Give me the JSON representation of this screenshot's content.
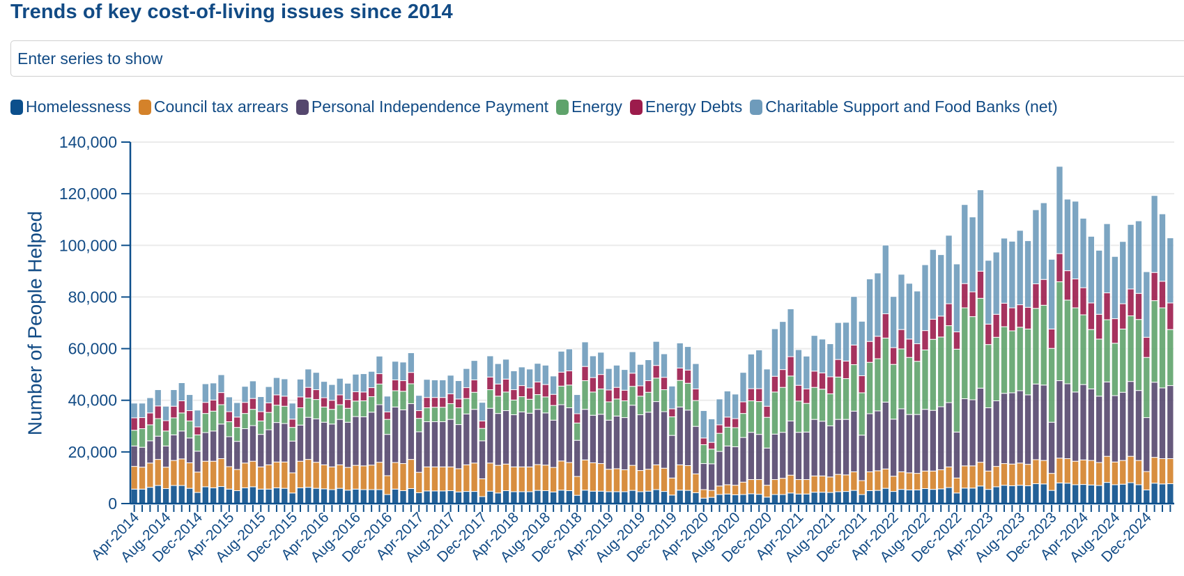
{
  "header": {
    "title": "Trends of key cost-of-living issues since 2014"
  },
  "search": {
    "placeholder": "Enter series to show",
    "value": ""
  },
  "legend": {
    "items": [
      {
        "label": "Homelessness",
        "color": "#0b4f8c",
        "icon": "legend-swatch"
      },
      {
        "label": "Council tax arrears",
        "color": "#d4822a",
        "icon": "legend-swatch"
      },
      {
        "label": "Personal Independence Payment",
        "color": "#55476e",
        "icon": "legend-swatch"
      },
      {
        "label": "Energy",
        "color": "#5fa36b",
        "icon": "legend-swatch"
      },
      {
        "label": "Energy Debts",
        "color": "#9c1c4c",
        "icon": "legend-swatch"
      },
      {
        "label": "Charitable Support and Food Banks (net)",
        "color": "#6e9bbb",
        "icon": "legend-swatch"
      }
    ]
  },
  "chart_data": {
    "type": "bar",
    "stacked": true,
    "title": "Trends of key cost-of-living issues since 2014",
    "xlabel": "",
    "ylabel": "Number of People Helped",
    "ylim": [
      0,
      140000
    ],
    "grid": true,
    "legend_position": "top-left",
    "y_ticks": [
      0,
      20000,
      40000,
      60000,
      80000,
      100000,
      120000,
      140000
    ],
    "y_tick_labels": [
      "0",
      "20,000",
      "40,000",
      "60,000",
      "80,000",
      "100,000",
      "120,000",
      "140,000"
    ],
    "x_tick_labels": [
      "Apr-2014",
      "Aug-2014",
      "Dec-2014",
      "Apr-2015",
      "Aug-2015",
      "Dec-2015",
      "Apr-2016",
      "Aug-2016",
      "Dec-2016",
      "Apr-2017",
      "Aug-2017",
      "Dec-2017",
      "Apr-2018",
      "Aug-2018",
      "Dec-2018",
      "Apr-2019",
      "Aug-2019",
      "Dec-2019",
      "Apr-2020",
      "Aug-2020",
      "Dec-2020",
      "Apr-2021",
      "Aug-2021",
      "Dec-2021",
      "Apr-2022",
      "Aug-2022",
      "Dec-2022",
      "Apr-2023",
      "Aug-2023",
      "Dec-2023",
      "Apr-2024",
      "Aug-2024",
      "Dec-2024"
    ],
    "categories": [
      "Apr-2014",
      "May-2014",
      "Jun-2014",
      "Jul-2014",
      "Aug-2014",
      "Sep-2014",
      "Oct-2014",
      "Nov-2014",
      "Dec-2014",
      "Jan-2015",
      "Feb-2015",
      "Mar-2015",
      "Apr-2015",
      "May-2015",
      "Jun-2015",
      "Jul-2015",
      "Aug-2015",
      "Sep-2015",
      "Oct-2015",
      "Nov-2015",
      "Dec-2015",
      "Jan-2016",
      "Feb-2016",
      "Mar-2016",
      "Apr-2016",
      "May-2016",
      "Jun-2016",
      "Jul-2016",
      "Aug-2016",
      "Sep-2016",
      "Oct-2016",
      "Nov-2016",
      "Dec-2016",
      "Jan-2017",
      "Feb-2017",
      "Mar-2017",
      "Apr-2017",
      "May-2017",
      "Jun-2017",
      "Jul-2017",
      "Aug-2017",
      "Sep-2017",
      "Oct-2017",
      "Nov-2017",
      "Dec-2017",
      "Jan-2018",
      "Feb-2018",
      "Mar-2018",
      "Apr-2018",
      "May-2018",
      "Jun-2018",
      "Jul-2018",
      "Aug-2018",
      "Sep-2018",
      "Oct-2018",
      "Nov-2018",
      "Dec-2018",
      "Jan-2019",
      "Feb-2019",
      "Mar-2019",
      "Apr-2019",
      "May-2019",
      "Jun-2019",
      "Jul-2019",
      "Aug-2019",
      "Sep-2019",
      "Oct-2019",
      "Nov-2019",
      "Dec-2019",
      "Jan-2020",
      "Feb-2020",
      "Mar-2020",
      "Apr-2020",
      "May-2020",
      "Jun-2020",
      "Jul-2020",
      "Aug-2020",
      "Sep-2020",
      "Oct-2020",
      "Nov-2020",
      "Dec-2020",
      "Jan-2021",
      "Feb-2021",
      "Mar-2021",
      "Apr-2021",
      "May-2021",
      "Jun-2021",
      "Jul-2021",
      "Aug-2021",
      "Sep-2021",
      "Oct-2021",
      "Nov-2021",
      "Dec-2021",
      "Jan-2022",
      "Feb-2022",
      "Mar-2022",
      "Apr-2022",
      "May-2022",
      "Jun-2022",
      "Jul-2022",
      "Aug-2022",
      "Sep-2022",
      "Oct-2022",
      "Nov-2022",
      "Dec-2022",
      "Jan-2023",
      "Feb-2023",
      "Mar-2023",
      "Apr-2023",
      "May-2023",
      "Jun-2023",
      "Jul-2023",
      "Aug-2023",
      "Sep-2023",
      "Oct-2023",
      "Nov-2023",
      "Dec-2023",
      "Jan-2024",
      "Feb-2024",
      "Mar-2024",
      "Apr-2024",
      "May-2024",
      "Jun-2024",
      "Jul-2024",
      "Aug-2024",
      "Sep-2024",
      "Oct-2024",
      "Nov-2024",
      "Dec-2024",
      "Jan-2025",
      "Feb-2025",
      "Mar-2025"
    ],
    "series": [
      {
        "name": "Homelessness",
        "color": "#0b4f8c",
        "values": [
          5600,
          5600,
          6300,
          7000,
          5800,
          7000,
          7000,
          5900,
          4300,
          6500,
          6100,
          6600,
          5600,
          5000,
          6100,
          6500,
          5600,
          5600,
          6100,
          5900,
          4100,
          6100,
          6300,
          5900,
          5700,
          5400,
          5900,
          5200,
          5600,
          5400,
          5400,
          5400,
          3500,
          5600,
          5000,
          5800,
          4200,
          4900,
          4900,
          4900,
          5000,
          4500,
          4700,
          4700,
          2700,
          4800,
          4100,
          5000,
          4600,
          4600,
          4600,
          5100,
          5000,
          4500,
          5200,
          5000,
          3200,
          5200,
          4800,
          4800,
          4600,
          4600,
          4600,
          5100,
          4600,
          4800,
          5400,
          4700,
          3300,
          5200,
          5100,
          4200,
          2100,
          2400,
          3500,
          3700,
          3400,
          3500,
          3800,
          3600,
          2500,
          3500,
          3500,
          4100,
          3700,
          3700,
          4400,
          4400,
          4300,
          4600,
          4700,
          5100,
          3500,
          5000,
          5100,
          5900,
          4700,
          5500,
          5300,
          5300,
          5800,
          5500,
          5700,
          6200,
          4100,
          6000,
          6000,
          6800,
          5500,
          6500,
          7100,
          6900,
          7100,
          6900,
          7700,
          7600,
          5100,
          8000,
          7900,
          7300,
          7400,
          7200,
          7000,
          8200,
          7300,
          7500,
          8100,
          7300,
          5300,
          7900,
          7600,
          7700
        ]
      },
      {
        "name": "Council tax arrears",
        "color": "#d4822a",
        "values": [
          8800,
          8500,
          9400,
          10100,
          8300,
          9700,
          10300,
          9900,
          7900,
          9900,
          10300,
          10800,
          8700,
          8200,
          9600,
          9900,
          8600,
          9400,
          10000,
          10200,
          7800,
          10300,
          10800,
          10100,
          9300,
          8800,
          9100,
          8800,
          9200,
          9200,
          9500,
          10600,
          7300,
          10300,
          10500,
          11300,
          7900,
          9300,
          9300,
          9300,
          9200,
          9000,
          10300,
          11000,
          6900,
          10900,
          10700,
          10300,
          9600,
          9600,
          9600,
          10000,
          9900,
          9500,
          11300,
          10900,
          7300,
          11700,
          11000,
          10700,
          8700,
          8900,
          8500,
          9700,
          8200,
          8500,
          9600,
          9000,
          6600,
          9800,
          9600,
          7300,
          3300,
          2700,
          3300,
          3600,
          3700,
          4800,
          5500,
          5700,
          4600,
          5800,
          6300,
          6900,
          5600,
          5600,
          6300,
          6300,
          6000,
          6700,
          6400,
          7200,
          5400,
          7300,
          7600,
          7500,
          5900,
          6800,
          6600,
          6400,
          6800,
          7100,
          7400,
          8000,
          5800,
          8600,
          8600,
          9200,
          7100,
          7900,
          8400,
          8400,
          8600,
          8300,
          9300,
          9100,
          6600,
          9600,
          9500,
          9100,
          9500,
          9500,
          8900,
          10100,
          8800,
          9200,
          10200,
          9400,
          7100,
          10000,
          9800,
          9700
        ]
      },
      {
        "name": "Personal Independence Payment",
        "color": "#55476e",
        "values": [
          7900,
          7700,
          8600,
          9000,
          8200,
          9900,
          10800,
          9600,
          8100,
          11100,
          11700,
          13400,
          11600,
          10900,
          13300,
          13800,
          12600,
          13600,
          15300,
          14900,
          12300,
          14000,
          16300,
          16800,
          16500,
          16600,
          17600,
          17500,
          18900,
          19000,
          20500,
          22300,
          16000,
          21500,
          20800,
          21600,
          15700,
          17500,
          17500,
          17500,
          18400,
          17100,
          19700,
          20800,
          14700,
          21200,
          20100,
          20700,
          20200,
          21300,
          20800,
          21400,
          20200,
          18300,
          21800,
          21200,
          14000,
          19600,
          18400,
          19100,
          19000,
          20400,
          20200,
          23300,
          21600,
          22100,
          24500,
          21900,
          16500,
          22400,
          21500,
          18400,
          10100,
          10300,
          13400,
          15000,
          14900,
          17300,
          18300,
          17500,
          14400,
          17600,
          17800,
          21000,
          18300,
          18400,
          21900,
          21200,
          19800,
          21300,
          21500,
          23500,
          17600,
          22500,
          23200,
          25900,
          22100,
          24400,
          22600,
          22800,
          23900,
          23500,
          24400,
          24900,
          17800,
          26000,
          25600,
          28700,
          24500,
          25400,
          27200,
          27600,
          28000,
          26900,
          29300,
          29200,
          19800,
          30000,
          29000,
          26800,
          29200,
          27700,
          25700,
          28800,
          25700,
          26400,
          29000,
          27100,
          20900,
          29100,
          27400,
          28300
        ]
      },
      {
        "name": "Energy",
        "color": "#5fa36b",
        "values": [
          6100,
          7200,
          6200,
          6800,
          5800,
          6600,
          7000,
          6600,
          6300,
          7400,
          7700,
          7500,
          5800,
          5400,
          5900,
          6300,
          5200,
          6700,
          6700,
          6700,
          5300,
          6700,
          7500,
          7500,
          5900,
          5700,
          5700,
          5400,
          6000,
          6200,
          6000,
          8000,
          5800,
          6300,
          7200,
          7700,
          5200,
          5400,
          5600,
          5600,
          6100,
          6500,
          6000,
          6600,
          4800,
          7200,
          6700,
          7200,
          5700,
          5900,
          5400,
          5700,
          6200,
          5700,
          7200,
          8800,
          6700,
          11100,
          9000,
          9800,
          7100,
          6600,
          6500,
          7300,
          7200,
          7700,
          9100,
          8500,
          7200,
          10300,
          10400,
          10000,
          7300,
          5700,
          7000,
          7300,
          7400,
          9300,
          12200,
          12700,
          11900,
          16300,
          17400,
          17400,
          12100,
          11100,
          12400,
          12400,
          12400,
          16400,
          15800,
          18000,
          16400,
          19900,
          20200,
          24800,
          21200,
          23200,
          22100,
          20600,
          23000,
          27500,
          27000,
          29800,
          32100,
          35200,
          32200,
          34800,
          24500,
          24600,
          25800,
          24000,
          24600,
          25500,
          29300,
          30900,
          28600,
          38300,
          32400,
          32600,
          27000,
          23000,
          22100,
          24100,
          20300,
          24500,
          25400,
          27500,
          23300,
          31600,
          31000,
          21700
        ]
      },
      {
        "name": "Energy Debts",
        "color": "#9c1c4c",
        "values": [
          4800,
          4300,
          4600,
          4900,
          4000,
          4500,
          4700,
          4000,
          3100,
          4300,
          4300,
          4700,
          3900,
          4000,
          4300,
          4200,
          3600,
          3700,
          4000,
          3900,
          3200,
          4200,
          4100,
          3800,
          3600,
          3500,
          3800,
          3400,
          3600,
          3400,
          3500,
          4000,
          2900,
          4200,
          4100,
          4400,
          3000,
          4000,
          3800,
          3800,
          3800,
          3400,
          4200,
          4800,
          2900,
          4900,
          4700,
          5000,
          4000,
          4300,
          4400,
          4900,
          4800,
          4300,
          5400,
          5500,
          3600,
          5500,
          5600,
          5600,
          4600,
          4500,
          4100,
          5100,
          4000,
          4500,
          4900,
          4800,
          3100,
          4800,
          5100,
          4500,
          2600,
          2600,
          3300,
          3900,
          3500,
          4500,
          4700,
          5000,
          4300,
          6100,
          6900,
          7500,
          6100,
          5600,
          6300,
          6300,
          6600,
          6800,
          6800,
          7600,
          6600,
          8100,
          8700,
          9400,
          6500,
          7500,
          7100,
          6800,
          7500,
          7800,
          8100,
          8500,
          6700,
          9400,
          9600,
          10500,
          7900,
          8900,
          9100,
          8900,
          8700,
          8400,
          9500,
          10000,
          7500,
          10900,
          11400,
          11200,
          10500,
          10300,
          9600,
          10400,
          9500,
          9800,
          10400,
          10100,
          7800,
          10900,
          10300,
          10300
        ]
      },
      {
        "name": "Charitable Support and Food Banks (net)",
        "color": "#6e9bbb",
        "values": [
          5700,
          5600,
          5900,
          6300,
          5600,
          6400,
          7000,
          6200,
          6500,
          7200,
          6600,
          6900,
          5700,
          5600,
          6200,
          6800,
          5800,
          6300,
          6700,
          6700,
          6200,
          6900,
          7100,
          6700,
          6300,
          6100,
          6400,
          6300,
          6800,
          7100,
          6300,
          6800,
          6100,
          7200,
          7200,
          7600,
          5900,
          7000,
          6800,
          6800,
          7200,
          7100,
          7400,
          7500,
          7200,
          8200,
          7900,
          7700,
          7300,
          7200,
          7300,
          7200,
          7500,
          7100,
          8100,
          8500,
          7400,
          9500,
          8400,
          8600,
          8300,
          8600,
          8000,
          8300,
          8300,
          8100,
          9300,
          9100,
          8800,
          9700,
          9100,
          9800,
          10600,
          9100,
          10000,
          10100,
          9500,
          11400,
          13400,
          15000,
          14400,
          18400,
          18600,
          18500,
          13800,
          12700,
          13800,
          13100,
          12800,
          14300,
          15000,
          18800,
          21100,
          24200,
          24500,
          26600,
          19800,
          21400,
          21600,
          20400,
          25500,
          27000,
          23800,
          26500,
          26300,
          30600,
          29000,
          31500,
          24700,
          24100,
          25200,
          25800,
          28800,
          25800,
          28700,
          29700,
          27000,
          33800,
          27700,
          30100,
          26900,
          25800,
          24800,
          26800,
          24100,
          24100,
          25000,
          28100,
          25400,
          29800,
          26100,
          25200
        ]
      }
    ]
  }
}
